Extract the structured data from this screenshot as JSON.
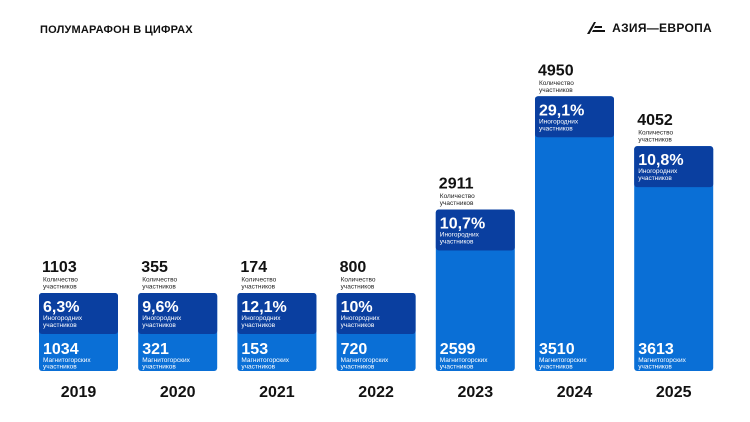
{
  "header": {
    "title": "ПОЛУМАРАФОН В ЦИФРАХ",
    "brand": "АЗИЯ—ЕВРОПА",
    "brand_icon": "azia-europa-logo-icon"
  },
  "colors": {
    "bar_light": "#0a6fd6",
    "bar_dark": "#0a3fa0",
    "text": "#111111"
  },
  "chart_data": {
    "type": "bar",
    "title": "ПОЛУМАРАФОН В ЦИФРАХ",
    "categories": [
      "2019",
      "2020",
      "2021",
      "2022",
      "2023",
      "2024",
      "2025"
    ],
    "series": [
      {
        "name": "Количество участников",
        "values": [
          1103,
          355,
          174,
          800,
          2911,
          4950,
          4052
        ]
      },
      {
        "name": "Магнитогорских участников",
        "values": [
          1034,
          321,
          153,
          720,
          2599,
          3510,
          3613
        ]
      },
      {
        "name": "Иногородних участников",
        "values": [
          "6,3%",
          "9,6%",
          "12,1%",
          "10%",
          "10,7%",
          "29,1%",
          "10,8%"
        ]
      }
    ],
    "total_labels": [
      "1103",
      "355",
      "174",
      "800",
      "2911",
      "4950",
      "4052"
    ],
    "local_labels": [
      "1034",
      "321",
      "153",
      "720",
      "2599",
      "3510",
      "3613"
    ],
    "percent_labels": [
      "6,3%",
      "9,6%",
      "12,1%",
      "10%",
      "10,7%",
      "29,1%",
      "10,8%"
    ],
    "total_caption": [
      "Количество",
      "участников"
    ],
    "nonlocal_caption": [
      "Иногородних",
      "участников"
    ],
    "local_caption": [
      "Магнитогорских",
      "участников"
    ],
    "xlabel": "",
    "ylabel": ""
  }
}
